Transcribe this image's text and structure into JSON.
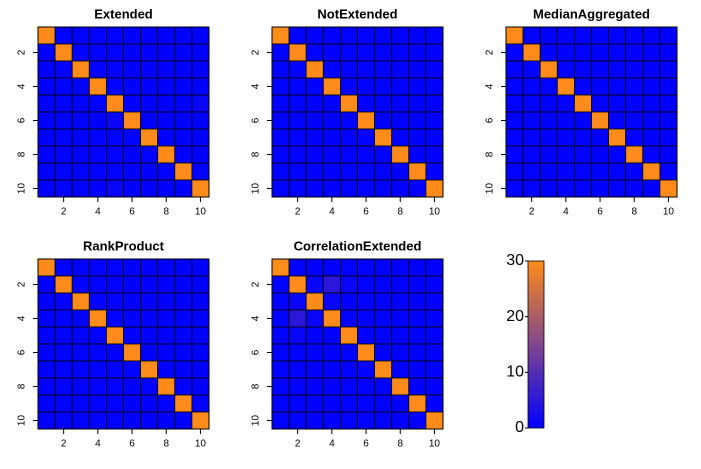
{
  "chart_data": [
    {
      "type": "heatmap",
      "title": "Extended",
      "xlim": [
        0.5,
        10.5
      ],
      "ylim": [
        10.5,
        0.5
      ],
      "xticks": [
        2,
        4,
        6,
        8,
        10
      ],
      "yticks": [
        2,
        4,
        6,
        8,
        10
      ],
      "values": [
        [
          30,
          0,
          0,
          0,
          0,
          0,
          0,
          0,
          0,
          0
        ],
        [
          0,
          30,
          0,
          0,
          0,
          0,
          0,
          0,
          0,
          0
        ],
        [
          0,
          0,
          30,
          0,
          0,
          0,
          0,
          0,
          0,
          0
        ],
        [
          0,
          0,
          0,
          30,
          0,
          0,
          0,
          0,
          0,
          0
        ],
        [
          0,
          0,
          0,
          0,
          30,
          0,
          0,
          0,
          0,
          1
        ],
        [
          0,
          0,
          0,
          0,
          1,
          30,
          0,
          0,
          0,
          0
        ],
        [
          0,
          0,
          0,
          0,
          0,
          0,
          30,
          0,
          0,
          0
        ],
        [
          0,
          0,
          0,
          0,
          0,
          0,
          0,
          30,
          0,
          0
        ],
        [
          0,
          0,
          0,
          0,
          0,
          0,
          0,
          0,
          30,
          0
        ],
        [
          0,
          0,
          0,
          0,
          1,
          0,
          0,
          0,
          0,
          30
        ]
      ]
    },
    {
      "type": "heatmap",
      "title": "NotExtended",
      "xlim": [
        0.5,
        10.5
      ],
      "ylim": [
        10.5,
        0.5
      ],
      "xticks": [
        2,
        4,
        6,
        8,
        10
      ],
      "yticks": [
        2,
        4,
        6,
        8,
        10
      ],
      "values": [
        [
          30,
          0,
          0,
          0,
          0,
          0,
          0,
          0,
          0,
          0
        ],
        [
          0,
          30,
          0,
          0,
          0,
          0,
          0,
          0,
          0,
          0
        ],
        [
          0,
          0,
          30,
          0,
          0,
          0,
          0,
          0,
          0,
          0
        ],
        [
          0,
          0,
          0,
          30,
          0,
          0,
          0,
          0,
          0,
          0
        ],
        [
          0,
          0,
          0,
          0,
          30,
          0,
          0,
          0,
          0,
          0
        ],
        [
          0,
          0,
          0,
          0,
          0,
          30,
          0,
          0,
          0,
          0
        ],
        [
          0,
          0,
          0,
          0,
          0,
          0,
          30,
          0,
          0,
          0
        ],
        [
          0,
          0,
          0,
          0,
          0,
          0,
          0,
          30,
          0,
          0
        ],
        [
          0,
          0,
          0,
          0,
          0,
          0,
          0,
          0,
          30,
          0
        ],
        [
          0,
          0,
          0,
          0,
          0,
          0,
          0,
          0,
          0,
          30
        ]
      ]
    },
    {
      "type": "heatmap",
      "title": "MedianAggregated",
      "xlim": [
        0.5,
        10.5
      ],
      "ylim": [
        10.5,
        0.5
      ],
      "xticks": [
        2,
        4,
        6,
        8,
        10
      ],
      "yticks": [
        2,
        4,
        6,
        8,
        10
      ],
      "values": [
        [
          30,
          0,
          0,
          0,
          0,
          0,
          0,
          0,
          0,
          0
        ],
        [
          0,
          30,
          0,
          0,
          0,
          0,
          0,
          0,
          0,
          0
        ],
        [
          0,
          0,
          30,
          0,
          0,
          0,
          0,
          0,
          0,
          0
        ],
        [
          0,
          0,
          0,
          30,
          0,
          0,
          0,
          0,
          0,
          0
        ],
        [
          0,
          0,
          0,
          0,
          30,
          0,
          0,
          0,
          0,
          0
        ],
        [
          0,
          0,
          0,
          0,
          0,
          30,
          0,
          0,
          0,
          0
        ],
        [
          0,
          0,
          0,
          0,
          0,
          0,
          30,
          0,
          0,
          0
        ],
        [
          0,
          0,
          0,
          0,
          0,
          0,
          0,
          30,
          0,
          0
        ],
        [
          0,
          0,
          0,
          0,
          0,
          0,
          0,
          0,
          30,
          0
        ],
        [
          0,
          0,
          0,
          0,
          0,
          0,
          0,
          0,
          0,
          30
        ]
      ]
    },
    {
      "type": "heatmap",
      "title": "RankProduct",
      "xlim": [
        0.5,
        10.5
      ],
      "ylim": [
        10.5,
        0.5
      ],
      "xticks": [
        2,
        4,
        6,
        8,
        10
      ],
      "yticks": [
        2,
        4,
        6,
        8,
        10
      ],
      "values": [
        [
          30,
          0,
          0,
          0,
          0,
          0,
          0,
          0,
          0,
          0
        ],
        [
          0,
          30,
          0,
          0,
          0,
          0,
          0,
          0,
          0,
          0
        ],
        [
          0,
          0,
          30,
          0,
          0,
          0,
          0,
          0,
          0,
          0
        ],
        [
          0,
          0,
          0,
          30,
          0,
          0,
          0,
          0,
          0,
          0
        ],
        [
          0,
          0,
          0,
          0,
          30,
          0,
          0,
          0,
          0,
          0
        ],
        [
          0,
          0,
          0,
          0,
          0,
          30,
          0,
          0,
          0,
          0
        ],
        [
          0,
          0,
          0,
          0,
          0,
          0,
          30,
          0,
          0,
          0
        ],
        [
          0,
          0,
          0,
          0,
          0,
          0,
          0,
          30,
          0,
          0
        ],
        [
          0,
          0,
          0,
          0,
          0,
          0,
          0,
          0,
          30,
          0
        ],
        [
          0,
          0,
          0,
          0,
          0,
          0,
          0,
          0,
          0,
          30
        ]
      ]
    },
    {
      "type": "heatmap",
      "title": "CorrelationExtended",
      "xlim": [
        0.5,
        10.5
      ],
      "ylim": [
        10.5,
        0.5
      ],
      "xticks": [
        2,
        4,
        6,
        8,
        10
      ],
      "yticks": [
        2,
        4,
        6,
        8,
        10
      ],
      "values": [
        [
          30,
          0,
          0,
          0,
          0,
          0,
          0,
          0,
          0,
          0
        ],
        [
          0,
          30,
          1,
          5,
          1,
          0,
          0,
          0,
          0,
          0
        ],
        [
          0,
          1,
          30,
          1,
          0,
          0,
          0,
          0,
          0,
          0
        ],
        [
          0,
          5,
          1,
          30,
          0,
          0,
          0,
          0,
          0,
          0
        ],
        [
          0,
          1,
          0,
          0,
          30,
          0,
          0,
          0,
          0,
          0
        ],
        [
          0,
          0,
          0,
          0,
          0,
          30,
          0,
          0,
          0,
          0
        ],
        [
          0,
          0,
          0,
          0,
          0,
          0,
          30,
          0,
          0,
          0
        ],
        [
          0,
          0,
          0,
          0,
          0,
          0,
          0,
          30,
          0,
          0
        ],
        [
          0,
          0,
          0,
          0,
          0,
          0,
          0,
          0,
          30,
          0
        ],
        [
          0,
          0,
          0,
          0,
          0,
          0,
          0,
          0,
          0,
          30
        ]
      ]
    },
    {
      "type": "colorbar",
      "zlim": [
        0,
        30
      ],
      "ticks": [
        0,
        10,
        20,
        30
      ],
      "colors": [
        "#0000ff",
        "#ff8c1a"
      ]
    }
  ]
}
